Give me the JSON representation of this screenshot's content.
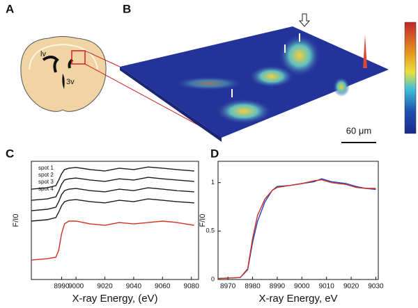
{
  "panel_labels": [
    "A",
    "B",
    "C",
    "D"
  ],
  "brain": {
    "labels": [
      "lv",
      "3v"
    ]
  },
  "map": {
    "scale_bar": "60 μm"
  },
  "chart_data": [
    {
      "type": "line",
      "xlabel": "X-ray Energy, (eV)",
      "ylabel": "F/I0",
      "x": [
        8969,
        8980,
        8986,
        8988,
        8990,
        8992,
        8995,
        9000,
        9010,
        9020,
        9030,
        9040,
        9050,
        9060,
        9070,
        9082
      ],
      "xlim": [
        8969,
        9085
      ],
      "xticks": [
        8990,
        9000,
        9020,
        9040,
        9060,
        9080
      ],
      "ylim": [
        0,
        5
      ],
      "legend": "upper left",
      "grid": false,
      "series": [
        {
          "name": "spot 1",
          "color": "#1a1a1a",
          "values": [
            3.82,
            3.88,
            3.97,
            4.21,
            4.47,
            4.65,
            4.71,
            4.74,
            4.65,
            4.59,
            4.71,
            4.65,
            4.76,
            4.71,
            4.65,
            4.59
          ]
        },
        {
          "name": "spot 2",
          "color": "#1a1a1a",
          "values": [
            3.35,
            3.41,
            3.5,
            3.74,
            4.03,
            4.21,
            4.26,
            4.29,
            4.21,
            4.15,
            4.26,
            4.21,
            4.32,
            4.26,
            4.21,
            4.15
          ]
        },
        {
          "name": "spot 3",
          "color": "#1a1a1a",
          "values": [
            2.91,
            2.97,
            3.06,
            3.29,
            3.59,
            3.76,
            3.82,
            3.85,
            3.76,
            3.71,
            3.82,
            3.76,
            3.88,
            3.82,
            3.76,
            3.71
          ]
        },
        {
          "name": "spot 4",
          "color": "#1a1a1a",
          "values": [
            2.47,
            2.53,
            2.62,
            2.85,
            3.12,
            3.29,
            3.35,
            3.38,
            3.29,
            3.24,
            3.35,
            3.29,
            3.41,
            3.35,
            3.29,
            3.24
          ]
        },
        {
          "color": "#d03020",
          "values": [
            0.82,
            0.88,
            0.94,
            1.24,
            1.94,
            2.35,
            2.47,
            2.47,
            2.35,
            2.29,
            2.41,
            2.35,
            2.41,
            2.47,
            2.41,
            2.29
          ]
        }
      ]
    },
    {
      "type": "line",
      "xlabel": "X-ray Energy, eV",
      "ylabel": "F/I0",
      "x": [
        8966,
        8975,
        8978,
        8980,
        8982,
        8985,
        8988,
        8990,
        8995,
        9000,
        9005,
        9008,
        9012,
        9018,
        9022,
        9026,
        9030
      ],
      "xlim": [
        8966,
        9031
      ],
      "xticks": [
        8970,
        8980,
        8990,
        9000,
        9010,
        9020,
        9030
      ],
      "ylim": [
        0,
        1.22
      ],
      "yticks": [
        0,
        0.5,
        1
      ],
      "grid": false,
      "series": [
        {
          "color": "#2040c0",
          "values": [
            0.01,
            0.02,
            0.1,
            0.38,
            0.6,
            0.8,
            0.92,
            0.96,
            0.97,
            0.99,
            1.01,
            1.04,
            1.01,
            0.99,
            0.96,
            0.94,
            0.93
          ]
        },
        {
          "color": "#d03020",
          "values": [
            0.01,
            0.02,
            0.11,
            0.42,
            0.66,
            0.83,
            0.92,
            0.95,
            0.97,
            0.99,
            1.02,
            1.03,
            1.0,
            0.98,
            0.95,
            0.94,
            0.94
          ]
        }
      ]
    }
  ]
}
